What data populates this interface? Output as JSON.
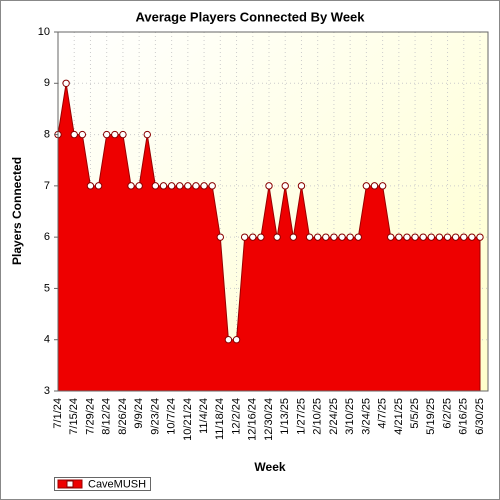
{
  "chart_data": {
    "type": "area",
    "title": "Average Players Connected By Week",
    "x_label": "Week",
    "y_label": "Players Connected",
    "categories": [
      "7/1/24",
      null,
      "7/15/24",
      null,
      "7/29/24",
      null,
      "8/12/24",
      null,
      "8/26/24",
      null,
      "9/9/24",
      null,
      "9/23/24",
      null,
      "10/7/24",
      null,
      "10/21/24",
      null,
      "11/4/24",
      null,
      "11/18/24",
      null,
      "12/2/24",
      null,
      "12/16/24",
      null,
      "12/30/24",
      null,
      "1/13/25",
      null,
      "1/27/25",
      null,
      "2/10/25",
      null,
      "2/24/25",
      null,
      "3/10/25",
      null,
      "3/24/25",
      null,
      "4/7/25",
      null,
      "4/21/25",
      null,
      "5/5/25",
      null,
      "5/19/25",
      null,
      "6/2/25",
      null,
      "6/16/25",
      null,
      "6/30/25"
    ],
    "series": [
      {
        "name": "CaveMUSH",
        "color": "#ee0000",
        "values": [
          8,
          9,
          8,
          8,
          7,
          7,
          8,
          8,
          8,
          7,
          7,
          8,
          7,
          7,
          7,
          7,
          7,
          7,
          7,
          7,
          6,
          4,
          4,
          6,
          6,
          6,
          7,
          6,
          7,
          6,
          7,
          6,
          6,
          6,
          6,
          6,
          6,
          6,
          7,
          7,
          7,
          6,
          6,
          6,
          6,
          6,
          6,
          6,
          6,
          6,
          6,
          6,
          6
        ]
      }
    ],
    "ylim": [
      3,
      10
    ],
    "yticks": [
      3,
      4,
      5,
      6,
      7,
      8,
      9,
      10
    ],
    "grid": true,
    "legend": "bottom-left"
  }
}
